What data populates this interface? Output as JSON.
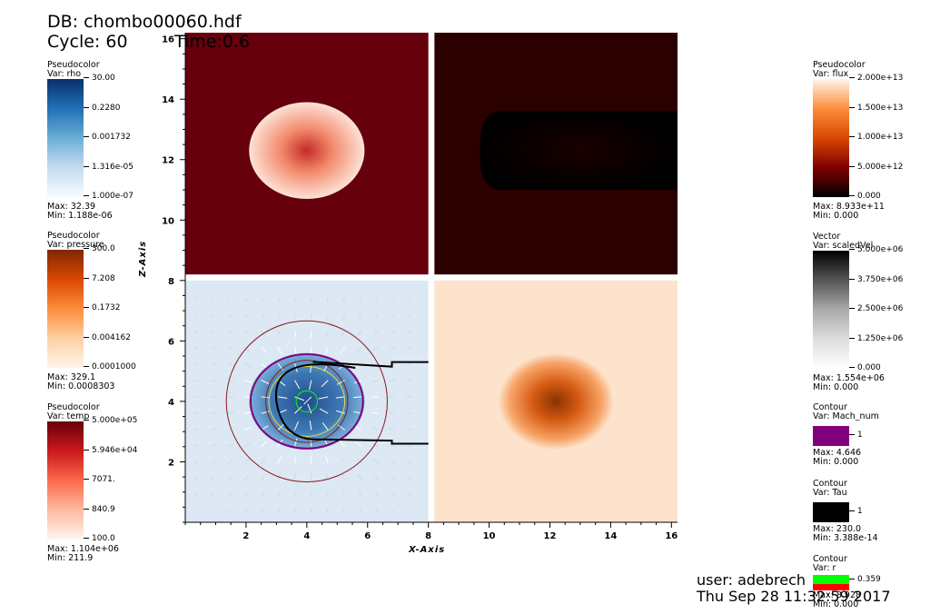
{
  "header": {
    "db": "DB: chombo00060.hdf",
    "cycle": "Cycle: 60",
    "time": "Time:0.6"
  },
  "legends_left": [
    {
      "title": "Pseudocolor",
      "var": "Var: rho",
      "ticks": [
        "30.00",
        "0.2280",
        "0.001732",
        "1.316e-05",
        "1.000e-07"
      ],
      "max": "Max:  32.39",
      "min": "Min:  1.188e-06",
      "colors": [
        "#08306b",
        "#2171b5",
        "#6baed6",
        "#c6dbef",
        "#f7fbff"
      ]
    },
    {
      "title": "Pseudocolor",
      "var": "Var: pressure",
      "ticks": [
        "300.0",
        "7.208",
        "0.1732",
        "0.004162",
        "0.0001000"
      ],
      "max": "Max:  329.1",
      "min": "Min:  0.0008303",
      "colors": [
        "#7f2704",
        "#d94801",
        "#fd8d3c",
        "#fdd0a2",
        "#fff5eb"
      ]
    },
    {
      "title": "Pseudocolor",
      "var": "Var: temp",
      "ticks": [
        "5.000e+05",
        "5.946e+04",
        "7071.",
        "840.9",
        "100.0"
      ],
      "max": "Max:  1.104e+06",
      "min": "Min:  211.9",
      "colors": [
        "#67000d",
        "#cb181d",
        "#fb6a4a",
        "#fcbba1",
        "#fff5f0"
      ]
    }
  ],
  "legends_right": [
    {
      "title": "Pseudocolor",
      "var": "Var: flux",
      "ticks": [
        "2.000e+13",
        "1.500e+13",
        "1.000e+13",
        "5.000e+12",
        "0.000"
      ],
      "max": "Max:  8.933e+11",
      "min": "Min:  0.000",
      "colors": [
        "#fff5eb",
        "#fd8d3c",
        "#d94801",
        "#7f0000",
        "#000000"
      ]
    },
    {
      "title": "Vector",
      "var": "Var: scaledVel",
      "ticks": [
        "5.000e+06",
        "3.750e+06",
        "2.500e+06",
        "1.250e+06",
        "0.000"
      ],
      "max": "Max:  1.554e+06",
      "min": "Min:  0.000",
      "colors": [
        "#000000",
        "#555555",
        "#aaaaaa",
        "#dddddd",
        "#ffffff"
      ]
    }
  ],
  "contours": [
    {
      "title": "Contour",
      "var": "Var: Mach_num",
      "tick": "1",
      "max": "Max:  4.646",
      "min": "Min:  0.000",
      "color": "#800080"
    },
    {
      "title": "Contour",
      "var": "Var: Tau",
      "tick": "1",
      "max": "Max:  230.0",
      "min": "Min:  3.388e-14",
      "color": "#000000"
    },
    {
      "title": "Contour",
      "var": "Var: r",
      "tick": "0.359",
      "max": "Max:  8.928",
      "min": "Min:  0.000",
      "color_top": "#00ff00",
      "color_bottom": "#ff0000"
    }
  ],
  "footer": {
    "user": "user: adebrech",
    "date": "Thu Sep 28 11:32:59 2017"
  },
  "chart_data": {
    "type": "heatmap",
    "xlabel": "X-Axis",
    "ylabel": "Z-Axis",
    "xlim": [
      0,
      16.2
    ],
    "ylim": [
      0,
      16.2
    ],
    "x_ticks": [
      "2",
      "4",
      "6",
      "8",
      "10",
      "12",
      "14",
      "16"
    ],
    "y_ticks": [
      "2",
      "4",
      "6",
      "8",
      "10",
      "12",
      "14",
      "16"
    ],
    "panels": [
      {
        "var": "temp",
        "x_range": [
          0,
          8
        ],
        "z_range": [
          8.2,
          16.2
        ],
        "background": "#67000d",
        "blob_center": [
          4,
          12.3
        ]
      },
      {
        "var": "flux",
        "x_range": [
          8.2,
          16.2
        ],
        "z_range": [
          8.2,
          16.2
        ],
        "background": "#2b0000",
        "blob_center": [
          12,
          12.3
        ]
      },
      {
        "var": "rho",
        "x_range": [
          0,
          8
        ],
        "z_range": [
          0,
          8
        ],
        "background": "#dce8f4",
        "blob_center": [
          4,
          4
        ]
      },
      {
        "var": "pressure",
        "x_range": [
          8.2,
          16.2
        ],
        "z_range": [
          0,
          8
        ],
        "background": "#fde3cc",
        "blob_center": [
          12.2,
          4
        ]
      }
    ]
  }
}
